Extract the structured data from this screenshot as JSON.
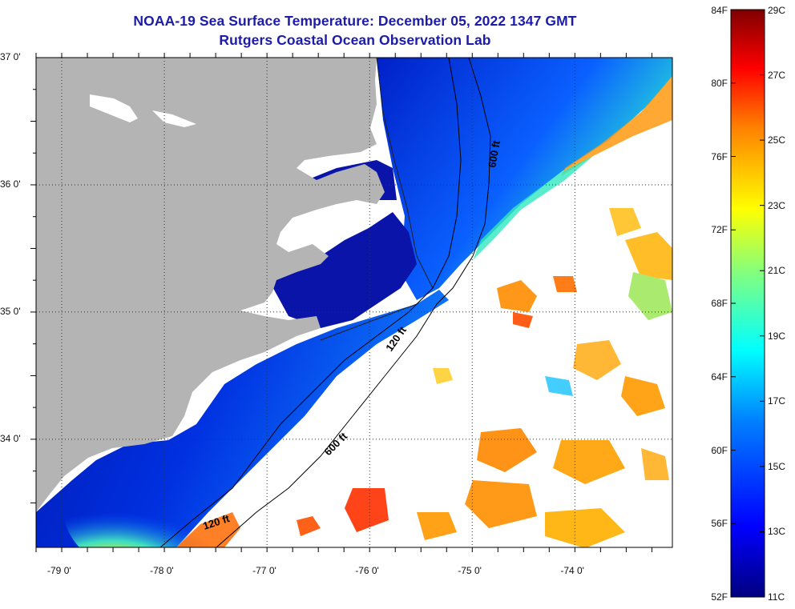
{
  "title": {
    "line1": "NOAA-19 Sea Surface Temperature:  December 05, 2022 1347 GMT",
    "line2": "Rutgers Coastal Ocean Observation Lab"
  },
  "map": {
    "lat_range": [
      33.15,
      37.0
    ],
    "lon_range": [
      -79.25,
      -73.05
    ],
    "lat_ticks": [
      {
        "value": 37.0,
        "label": "37 0'"
      },
      {
        "value": 36.0,
        "label": "36 0'"
      },
      {
        "value": 35.0,
        "label": "35 0'"
      },
      {
        "value": 34.0,
        "label": "34 0'"
      }
    ],
    "lon_ticks": [
      {
        "value": -79.0,
        "label": "-79 0'"
      },
      {
        "value": -78.0,
        "label": "-78 0'"
      },
      {
        "value": -77.0,
        "label": "-77 0'"
      },
      {
        "value": -76.0,
        "label": "-76 0'"
      },
      {
        "value": -75.0,
        "label": "-75 0'"
      },
      {
        "value": -74.0,
        "label": "-74 0'"
      }
    ],
    "contours": [
      {
        "label": "600 ft"
      },
      {
        "label": "600 ft"
      },
      {
        "label": "120 ft"
      },
      {
        "label": "120 ft"
      }
    ],
    "land_color": "#b4b4b4",
    "cloud_color": "#ffffff"
  },
  "colorbar": {
    "fahrenheit": [
      "84F",
      "80F",
      "76F",
      "72F",
      "68F",
      "64F",
      "60F",
      "56F",
      "52F"
    ],
    "celsius": [
      "29C",
      "27C",
      "25C",
      "23C",
      "21C",
      "19C",
      "17C",
      "15C",
      "13C",
      "11C"
    ],
    "range_c": [
      11,
      29
    ],
    "colors": [
      "#00007f",
      "#0000ff",
      "#0080ff",
      "#00ffff",
      "#80ff80",
      "#ffff00",
      "#ff8000",
      "#ff0000",
      "#7f0000"
    ]
  }
}
